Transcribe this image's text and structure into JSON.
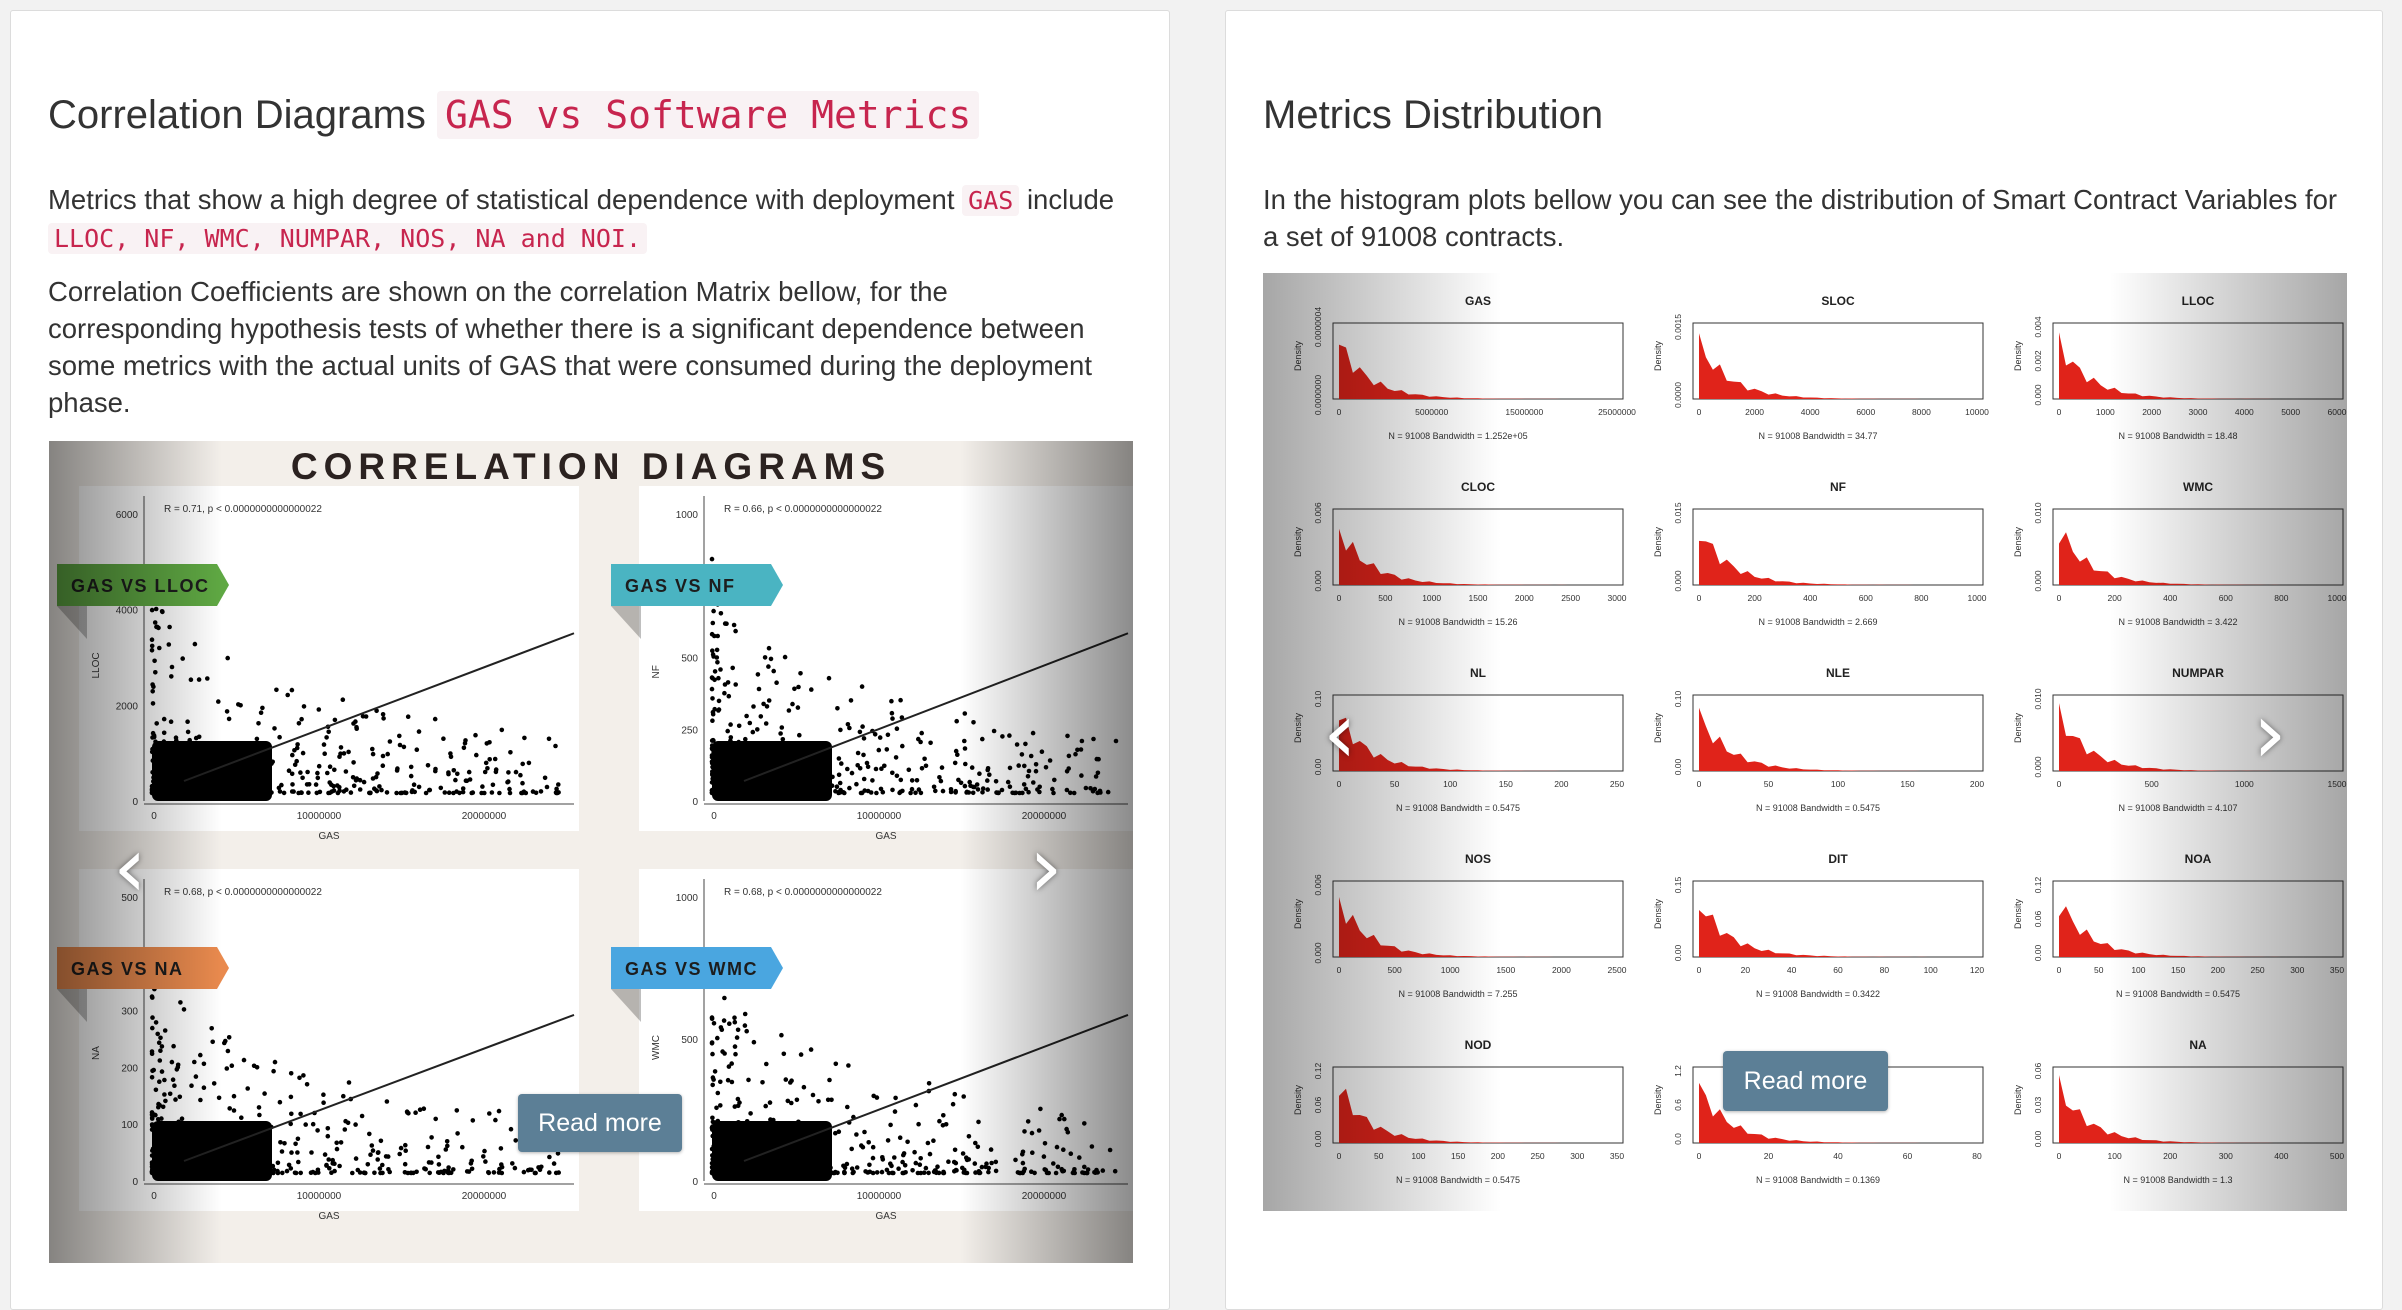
{
  "left": {
    "heading": "Correlation Diagrams",
    "heading_code": "GAS vs Software Metrics",
    "para1_a": "Metrics that show a high degree of statistical dependence with deployment",
    "para1_code": "GAS",
    "para1_b": "include",
    "para1_list": "LLOC, NF, WMC, NUMPAR, NOS, NA and NOI.",
    "para2": "Correlation Coefficients are shown on the correlation Matrix bellow, for the corresponding hypothesis tests of whether there is a significant dependence between some metrics with the actual units of GAS that were consumed during the deployment phase.",
    "read_more": "Read more",
    "slide": {
      "banner": "CORRELATION DIAGRAMS",
      "panels": [
        {
          "ribbon": "GAS VS LLOC",
          "ribbon_color": "#5fa843",
          "stat": "R = 0.71, p < 0.0000000000000022",
          "xlabel": "GAS",
          "ylabel": "LLOC",
          "yticks": [
            "6000",
            "4000",
            "2000",
            "0"
          ],
          "xticks": [
            "0",
            "10000000",
            "20000000"
          ]
        },
        {
          "ribbon": "GAS VS NF",
          "ribbon_color": "#4ab4c2",
          "stat": "R = 0.66, p < 0.0000000000000022",
          "xlabel": "GAS",
          "ylabel": "NF",
          "yticks": [
            "1000",
            "750",
            "500",
            "250",
            "0"
          ],
          "xticks": [
            "0",
            "10000000",
            "20000000"
          ]
        },
        {
          "ribbon": "GAS VS NA",
          "ribbon_color": "#e98a4e",
          "stat": "R = 0.68, p < 0.0000000000000022",
          "xlabel": "GAS",
          "ylabel": "NA",
          "yticks": [
            "500",
            "400",
            "300",
            "200",
            "100",
            "0"
          ],
          "xticks": [
            "0",
            "10000000",
            "20000000"
          ]
        },
        {
          "ribbon": "GAS VS WMC",
          "ribbon_color": "#4aa6e0",
          "stat": "R = 0.68, p < 0.0000000000000022",
          "xlabel": "GAS",
          "ylabel": "WMC",
          "yticks": [
            "1000",
            "500",
            "0"
          ],
          "xticks": [
            "0",
            "10000000",
            "20000000"
          ]
        }
      ]
    }
  },
  "right": {
    "heading": "Metrics Distribution",
    "para": "In the histogram plots bellow you can see the distribution of Smart Contract Variables for a set of 91008 contracts.",
    "read_more": "Read more",
    "ylabel": "Density",
    "histograms": [
      {
        "title": "GAS",
        "sub": "N = 91008   Bandwidth = 1.252e+05",
        "xticks": [
          "0",
          "5000000",
          "15000000",
          "25000000"
        ],
        "yticks": [
          "0.0000000",
          "0.0000004"
        ]
      },
      {
        "title": "SLOC",
        "sub": "N = 91008   Bandwidth = 34.77",
        "xticks": [
          "0",
          "2000",
          "4000",
          "6000",
          "8000",
          "10000"
        ],
        "yticks": [
          "0.0000",
          "0.0015"
        ]
      },
      {
        "title": "LLOC",
        "sub": "N = 91008   Bandwidth = 18.48",
        "xticks": [
          "0",
          "1000",
          "2000",
          "3000",
          "4000",
          "5000",
          "6000"
        ],
        "yticks": [
          "0.000",
          "0.002",
          "0.004"
        ]
      },
      {
        "title": "CLOC",
        "sub": "N = 91008   Bandwidth = 15.26",
        "xticks": [
          "0",
          "500",
          "1000",
          "1500",
          "2000",
          "2500",
          "3000"
        ],
        "yticks": [
          "0.000",
          "0.006"
        ]
      },
      {
        "title": "NF",
        "sub": "N = 91008   Bandwidth = 2.669",
        "xticks": [
          "0",
          "200",
          "400",
          "600",
          "800",
          "1000"
        ],
        "yticks": [
          "0.000",
          "0.015"
        ]
      },
      {
        "title": "WMC",
        "sub": "N = 91008   Bandwidth = 3.422",
        "xticks": [
          "0",
          "200",
          "400",
          "600",
          "800",
          "1000"
        ],
        "yticks": [
          "0.000",
          "0.010"
        ]
      },
      {
        "title": "NL",
        "sub": "N = 91008   Bandwidth = 0.5475",
        "xticks": [
          "0",
          "50",
          "100",
          "150",
          "200",
          "250"
        ],
        "yticks": [
          "0.00",
          "0.10"
        ]
      },
      {
        "title": "NLE",
        "sub": "N = 91008   Bandwidth = 0.5475",
        "xticks": [
          "0",
          "50",
          "100",
          "150",
          "200"
        ],
        "yticks": [
          "0.00",
          "0.10"
        ]
      },
      {
        "title": "NUMPAR",
        "sub": "N = 91008   Bandwidth = 4.107",
        "xticks": [
          "0",
          "500",
          "1000",
          "1500"
        ],
        "yticks": [
          "0.000",
          "0.010"
        ]
      },
      {
        "title": "NOS",
        "sub": "N = 91008   Bandwidth = 7.255",
        "xticks": [
          "0",
          "500",
          "1000",
          "1500",
          "2000",
          "2500"
        ],
        "yticks": [
          "0.000",
          "0.006"
        ]
      },
      {
        "title": "DIT",
        "sub": "N = 91008   Bandwidth = 0.3422",
        "xticks": [
          "0",
          "20",
          "40",
          "60",
          "80",
          "100",
          "120"
        ],
        "yticks": [
          "0.00",
          "0.15"
        ]
      },
      {
        "title": "NOA",
        "sub": "N = 91008   Bandwidth = 0.5475",
        "xticks": [
          "0",
          "50",
          "100",
          "150",
          "200",
          "250",
          "300",
          "350"
        ],
        "yticks": [
          "0.00",
          "0.06",
          "0.12"
        ]
      },
      {
        "title": "NOD",
        "sub": "N = 91008   Bandwidth = 0.5475",
        "xticks": [
          "0",
          "50",
          "100",
          "150",
          "200",
          "250",
          "300",
          "350"
        ],
        "yticks": [
          "0.00",
          "0.06",
          "0.12"
        ]
      },
      {
        "title": "",
        "sub": "N = 91008   Bandwidth = 0.1369",
        "xticks": [
          "0",
          "20",
          "40",
          "60",
          "80"
        ],
        "yticks": [
          "0.0",
          "0.6",
          "1.2"
        ]
      },
      {
        "title": "NA",
        "sub": "N = 91008   Bandwidth = 1.3",
        "xticks": [
          "0",
          "100",
          "200",
          "300",
          "400",
          "500"
        ],
        "yticks": [
          "0.00",
          "0.03",
          "0.06"
        ]
      }
    ]
  },
  "icons": {
    "prev": "chevron-left-icon",
    "next": "chevron-right-icon"
  },
  "colors": {
    "code_text": "#c7254e",
    "code_bg": "#f9f2f4",
    "read_more_bg": "#5c7f96",
    "histogram_fill": "#e0231a"
  }
}
